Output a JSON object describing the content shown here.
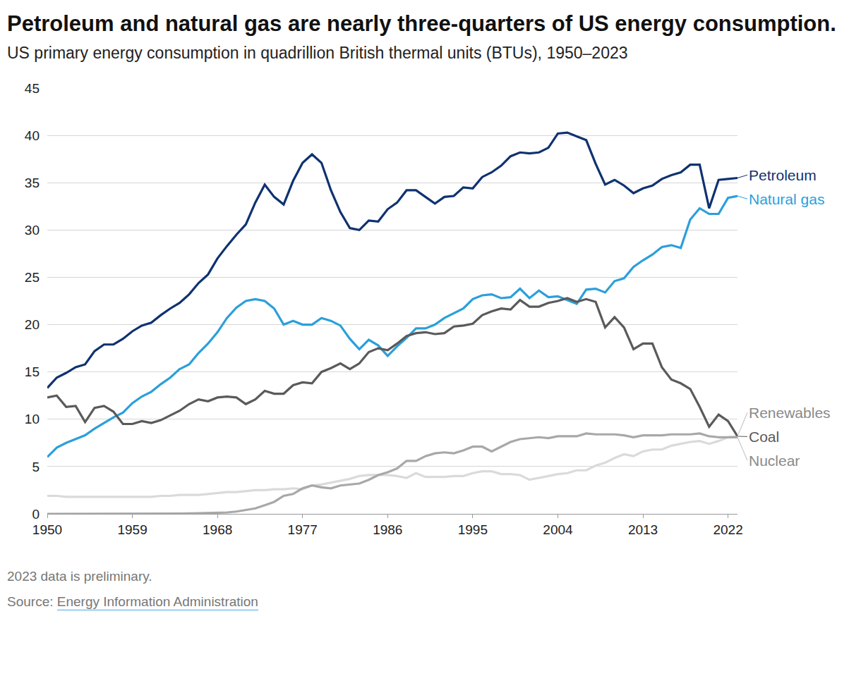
{
  "chart_data": {
    "type": "line",
    "title": "Petroleum and natural gas are nearly three-quarters of US energy consumption.",
    "subtitle": "US primary energy consumption in quadrillion British thermal units (BTUs), 1950–2023",
    "note": "2023 data is preliminary.",
    "source_label": "Source:",
    "source": "Energy Information Administration",
    "x": [
      1950,
      1951,
      1952,
      1953,
      1954,
      1955,
      1956,
      1957,
      1958,
      1959,
      1960,
      1961,
      1962,
      1963,
      1964,
      1965,
      1966,
      1967,
      1968,
      1969,
      1970,
      1971,
      1972,
      1973,
      1974,
      1975,
      1976,
      1977,
      1978,
      1979,
      1980,
      1981,
      1982,
      1983,
      1984,
      1985,
      1986,
      1987,
      1988,
      1989,
      1990,
      1991,
      1992,
      1993,
      1994,
      1995,
      1996,
      1997,
      1998,
      1999,
      2000,
      2001,
      2002,
      2003,
      2004,
      2005,
      2006,
      2007,
      2008,
      2009,
      2010,
      2011,
      2012,
      2013,
      2014,
      2015,
      2016,
      2017,
      2018,
      2019,
      2020,
      2021,
      2022,
      2023
    ],
    "series": [
      {
        "name": "Petroleum",
        "color": "#0f3270",
        "values": [
          13.3,
          14.4,
          14.9,
          15.5,
          15.8,
          17.2,
          17.9,
          17.9,
          18.5,
          19.3,
          19.9,
          20.2,
          21.0,
          21.7,
          22.3,
          23.2,
          24.4,
          25.3,
          27.0,
          28.3,
          29.5,
          30.6,
          32.9,
          34.8,
          33.5,
          32.7,
          35.2,
          37.1,
          38.0,
          37.1,
          34.2,
          31.9,
          30.2,
          30.0,
          31.0,
          30.9,
          32.2,
          32.9,
          34.2,
          34.2,
          33.5,
          32.8,
          33.5,
          33.6,
          34.5,
          34.4,
          35.6,
          36.1,
          36.8,
          37.8,
          38.2,
          38.1,
          38.2,
          38.7,
          40.2,
          40.3,
          39.9,
          39.5,
          37.0,
          34.8,
          35.3,
          34.7,
          33.9,
          34.4,
          34.7,
          35.4,
          35.8,
          36.1,
          36.9,
          36.9,
          32.3,
          35.3,
          35.4,
          35.5
        ]
      },
      {
        "name": "Natural gas",
        "color": "#2b9fdb",
        "values": [
          6.0,
          7.0,
          7.5,
          7.9,
          8.3,
          9.0,
          9.6,
          10.2,
          10.7,
          11.7,
          12.4,
          12.9,
          13.7,
          14.4,
          15.3,
          15.8,
          17.0,
          18.0,
          19.2,
          20.7,
          21.8,
          22.5,
          22.7,
          22.5,
          21.7,
          20.0,
          20.4,
          20.0,
          20.0,
          20.7,
          20.4,
          19.9,
          18.5,
          17.4,
          18.4,
          17.8,
          16.7,
          17.7,
          18.6,
          19.6,
          19.6,
          20.0,
          20.7,
          21.2,
          21.7,
          22.7,
          23.1,
          23.2,
          22.8,
          22.9,
          23.8,
          22.8,
          23.6,
          22.9,
          23.0,
          22.6,
          22.2,
          23.7,
          23.8,
          23.4,
          24.6,
          24.9,
          26.1,
          26.8,
          27.4,
          28.2,
          28.4,
          28.1,
          31.1,
          32.3,
          31.7,
          31.7,
          33.4,
          33.6
        ]
      },
      {
        "name": "Renewables",
        "color": "#dadada",
        "values": [
          1.9,
          1.9,
          1.8,
          1.8,
          1.8,
          1.8,
          1.8,
          1.8,
          1.8,
          1.8,
          1.8,
          1.8,
          1.9,
          1.9,
          2.0,
          2.0,
          2.0,
          2.1,
          2.2,
          2.3,
          2.3,
          2.4,
          2.5,
          2.5,
          2.6,
          2.6,
          2.7,
          2.6,
          3.0,
          3.1,
          3.3,
          3.5,
          3.7,
          4.0,
          4.1,
          4.1,
          4.1,
          4.0,
          3.8,
          4.3,
          3.9,
          3.9,
          3.9,
          4.0,
          4.0,
          4.3,
          4.5,
          4.5,
          4.2,
          4.2,
          4.1,
          3.6,
          3.8,
          4.0,
          4.2,
          4.3,
          4.6,
          4.6,
          5.1,
          5.4,
          5.9,
          6.3,
          6.1,
          6.6,
          6.8,
          6.8,
          7.2,
          7.4,
          7.6,
          7.7,
          7.4,
          7.7,
          8.1,
          8.2
        ]
      },
      {
        "name": "Coal",
        "color": "#5a5a5a",
        "values": [
          12.3,
          12.5,
          11.3,
          11.4,
          9.7,
          11.2,
          11.4,
          10.8,
          9.5,
          9.5,
          9.8,
          9.6,
          9.9,
          10.4,
          10.9,
          11.6,
          12.1,
          11.9,
          12.3,
          12.4,
          12.3,
          11.6,
          12.1,
          13.0,
          12.7,
          12.7,
          13.6,
          13.9,
          13.8,
          15.0,
          15.4,
          15.9,
          15.3,
          15.9,
          17.1,
          17.5,
          17.3,
          18.0,
          18.8,
          19.1,
          19.2,
          19.0,
          19.1,
          19.8,
          19.9,
          20.1,
          21.0,
          21.4,
          21.7,
          21.6,
          22.6,
          21.9,
          21.9,
          22.3,
          22.5,
          22.8,
          22.4,
          22.7,
          22.4,
          19.7,
          20.8,
          19.7,
          17.4,
          18.0,
          18.0,
          15.5,
          14.2,
          13.8,
          13.2,
          11.3,
          9.2,
          10.5,
          9.8,
          8.2
        ]
      },
      {
        "name": "Nuclear",
        "color": "#a8a8a8",
        "values": [
          0,
          0,
          0,
          0,
          0,
          0,
          0,
          0,
          0,
          0,
          0.01,
          0.02,
          0.03,
          0.04,
          0.04,
          0.04,
          0.06,
          0.09,
          0.14,
          0.15,
          0.24,
          0.41,
          0.58,
          0.91,
          1.27,
          1.9,
          2.1,
          2.7,
          3.0,
          2.8,
          2.7,
          3.0,
          3.1,
          3.2,
          3.6,
          4.1,
          4.4,
          4.8,
          5.6,
          5.6,
          6.1,
          6.4,
          6.5,
          6.4,
          6.7,
          7.1,
          7.1,
          6.6,
          7.1,
          7.6,
          7.9,
          8.0,
          8.1,
          8.0,
          8.2,
          8.2,
          8.2,
          8.5,
          8.4,
          8.4,
          8.4,
          8.3,
          8.1,
          8.3,
          8.3,
          8.3,
          8.4,
          8.4,
          8.4,
          8.5,
          8.2,
          8.1,
          8.1,
          8.1
        ]
      }
    ],
    "xlim": [
      1950,
      2023
    ],
    "xticks": [
      1950,
      1959,
      1968,
      1977,
      1986,
      1995,
      2004,
      2013,
      2022
    ],
    "ylim": [
      0,
      45
    ],
    "yticks": [
      0,
      5,
      10,
      15,
      20,
      25,
      30,
      35,
      40,
      45
    ],
    "grid": true
  }
}
